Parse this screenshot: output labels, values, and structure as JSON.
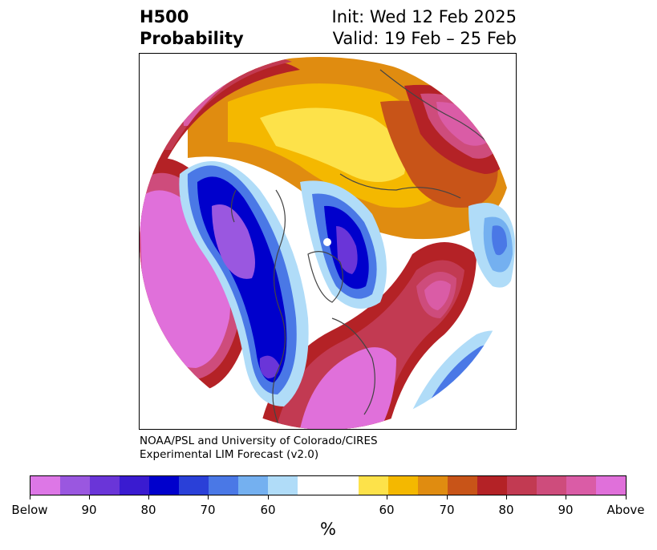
{
  "title": {
    "left_line1": "H500",
    "left_line2": "Probability",
    "right_line1": "Init: Wed 12 Feb 2025",
    "right_line2": "Valid: 19 Feb – 25 Feb"
  },
  "credit": {
    "line1": "NOAA/PSL and University of Colorado/CIRES",
    "line2": "Experimental LIM Forecast (v2.0)"
  },
  "colorbar": {
    "below_colors": [
      "#dd77e6",
      "#9a57e0",
      "#6a35d8",
      "#3a1bd0",
      "#0000cc",
      "#2a40d8",
      "#4a78e6",
      "#74b0f0",
      "#b0dcf8"
    ],
    "neutral_color": "#ffffff",
    "above_colors": [
      "#fde24a",
      "#f4b800",
      "#e08c10",
      "#c85418",
      "#b42226",
      "#c23a52",
      "#ce4c7c",
      "#da5ca6",
      "#e070da"
    ],
    "labels": [
      "Below",
      "90",
      "80",
      "70",
      "60",
      "60",
      "70",
      "80",
      "90",
      "Above"
    ],
    "unit": "%"
  },
  "map": {
    "projection": "north-polar-stereographic",
    "field": "500-hPa height probability anomaly"
  }
}
